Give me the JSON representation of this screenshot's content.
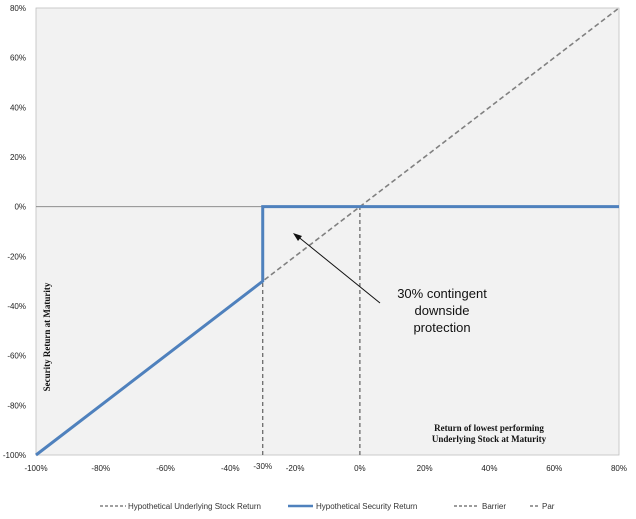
{
  "chart_data": {
    "type": "line",
    "title": "",
    "xlabel": "Return of lowest performing Underlying Stock at Maturity",
    "xlabel_lines": [
      "Return of lowest performing",
      "Underlying Stock at Maturity"
    ],
    "ylabel": "Security Return at Maturity",
    "xlim": [
      -100,
      80
    ],
    "ylim": [
      -100,
      80
    ],
    "x_ticks": [
      -100,
      -80,
      -60,
      -40,
      -20,
      0,
      20,
      40,
      60,
      80
    ],
    "y_ticks": [
      -100,
      -80,
      -60,
      -40,
      -20,
      0,
      20,
      40,
      60,
      80
    ],
    "tick_format": "percent",
    "grid": false,
    "plot_background": "#f2f2f2",
    "highlight_tick": {
      "value": -30,
      "label": "-30%"
    },
    "annotation": {
      "lines": [
        "30% contingent",
        "downside",
        "protection"
      ],
      "text": "30% contingent downside protection"
    },
    "legend_position": "bottom",
    "series": [
      {
        "name": "Hypothetical Underlying Stock Return",
        "style": "dashed",
        "color": "#808080",
        "x": [
          -100,
          80
        ],
        "y": [
          -100,
          80
        ]
      },
      {
        "name": "Hypothetical Security Return",
        "style": "solid",
        "color": "#4f81bd",
        "x": [
          -100,
          -30,
          -30,
          80
        ],
        "y": [
          -100,
          -30,
          0,
          0
        ]
      },
      {
        "name": "Barrier",
        "style": "dashed",
        "color": "#606060",
        "x": [
          -30,
          -30
        ],
        "y": [
          -100,
          -30
        ]
      },
      {
        "name": "Par",
        "style": "dashed",
        "color": "#606060",
        "x": [
          0,
          0
        ],
        "y": [
          -100,
          0
        ]
      }
    ],
    "reference_line": {
      "y": 0,
      "color": "#808080"
    }
  }
}
